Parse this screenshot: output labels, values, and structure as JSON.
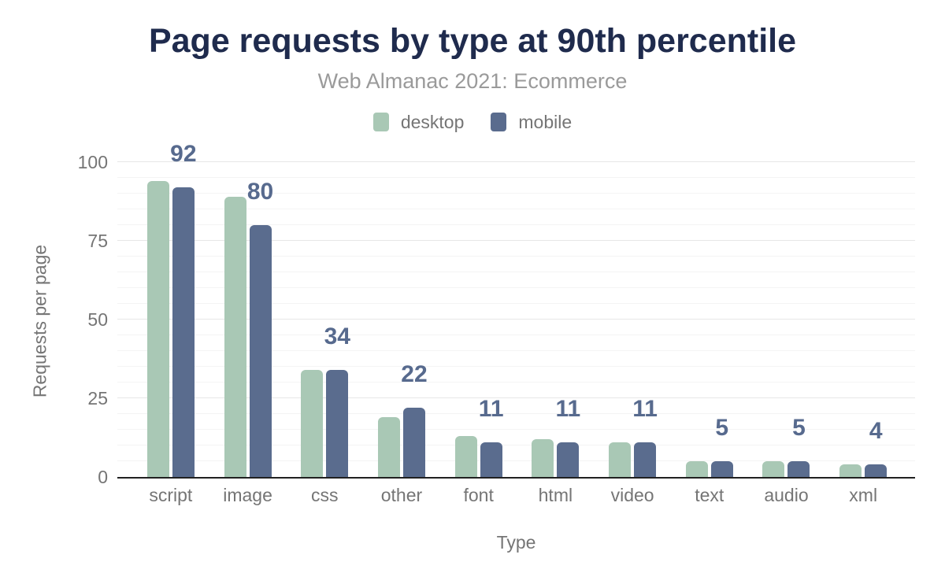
{
  "title": "Page requests by type at 90th percentile",
  "subtitle": "Web Almanac 2021: Ecommerce",
  "legend": [
    {
      "label": "desktop",
      "color": "#a9c8b5"
    },
    {
      "label": "mobile",
      "color": "#5a6c8e"
    }
  ],
  "colors": {
    "title": "#1f2b4d",
    "subtitle": "#9a9a9a",
    "axis_text": "#757575",
    "data_label": "#576a8e",
    "desktop_bar": "#a9c8b5",
    "mobile_bar": "#5a6c8e",
    "axis_line": "#212121",
    "grid_major": "#e7e7e7",
    "grid_minor": "#f4f4f4"
  },
  "chart_data": {
    "type": "bar",
    "categories": [
      "script",
      "image",
      "css",
      "other",
      "font",
      "html",
      "video",
      "text",
      "audio",
      "xml"
    ],
    "series": [
      {
        "name": "desktop",
        "color": "#a9c8b5",
        "values": [
          94,
          89,
          34,
          19,
          13,
          12,
          11,
          5,
          5,
          4
        ]
      },
      {
        "name": "mobile",
        "color": "#5a6c8e",
        "values": [
          92,
          80,
          34,
          22,
          11,
          11,
          11,
          5,
          5,
          4
        ]
      }
    ],
    "data_labels": [
      "92",
      "80",
      "34",
      "22",
      "11",
      "11",
      "11",
      "5",
      "5",
      "4"
    ],
    "data_labels_series": "mobile",
    "title": "Page requests by type at 90th percentile",
    "subtitle": "Web Almanac 2021: Ecommerce",
    "xlabel": "Type",
    "ylabel": "Requests per page",
    "ylim": [
      0,
      100
    ],
    "yticks": [
      0,
      25,
      50,
      75,
      100
    ],
    "minor_grid_step": 5,
    "grid": true,
    "legend_position": "top"
  }
}
